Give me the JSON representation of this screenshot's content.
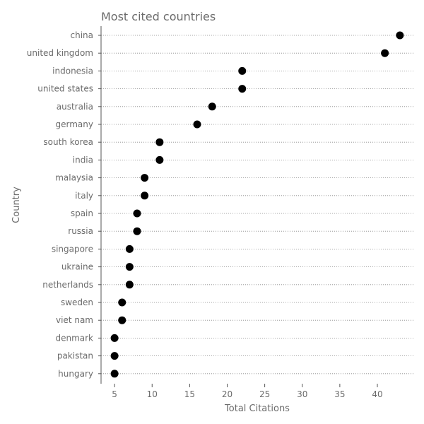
{
  "chart_data": {
    "type": "scatter",
    "title": "Most cited countries",
    "xlabel": "Total Citations",
    "ylabel": "Country",
    "xlim": [
      3.2,
      44.8
    ],
    "xticks": [
      5,
      10,
      15,
      20,
      25,
      30,
      35,
      40
    ],
    "grid": "horizontal dotted",
    "colors": {
      "marker": "#000000",
      "text": "#6b6b6b",
      "axis": "#555555",
      "grid": "#888888"
    },
    "categories": [
      "china",
      "united kingdom",
      "indonesia",
      "united states",
      "australia",
      "germany",
      "south korea",
      "india",
      "malaysia",
      "italy",
      "spain",
      "russia",
      "singapore",
      "ukraine",
      "netherlands",
      "sweden",
      "viet nam",
      "denmark",
      "pakistan",
      "hungary"
    ],
    "values": [
      43,
      41,
      22,
      22,
      18,
      16,
      11,
      11,
      9,
      9,
      8,
      8,
      7,
      7,
      7,
      6,
      6,
      5,
      5,
      5
    ]
  }
}
